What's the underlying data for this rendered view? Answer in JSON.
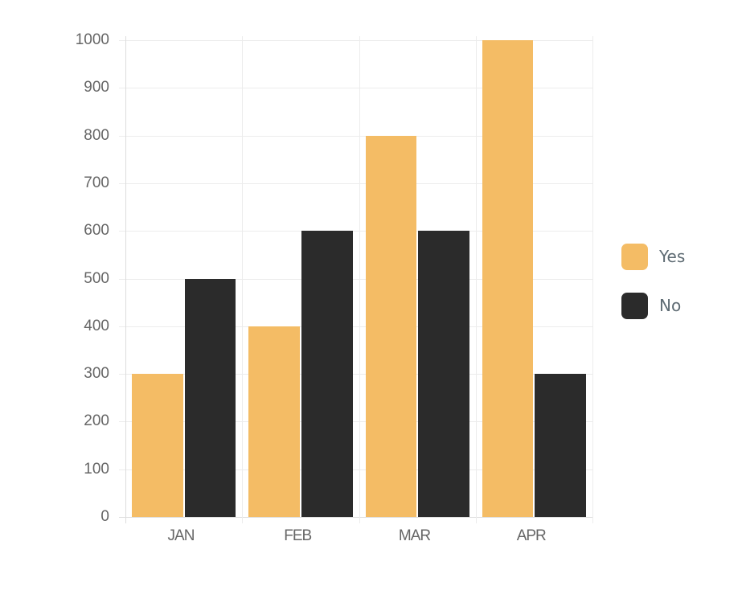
{
  "chart_data": {
    "type": "bar",
    "title": "",
    "xlabel": "",
    "ylabel": "",
    "categories": [
      "JAN",
      "FEB",
      "MAR",
      "APR"
    ],
    "series": [
      {
        "name": "Yes",
        "color": "#f4bc65",
        "values": [
          300,
          400,
          800,
          1000
        ]
      },
      {
        "name": "No",
        "color": "#2b2b2b",
        "values": [
          500,
          600,
          600,
          300
        ]
      }
    ],
    "ylim": [
      0,
      1000
    ],
    "yticks": [
      0,
      100,
      200,
      300,
      400,
      500,
      600,
      700,
      800,
      900,
      1000
    ],
    "grid": true,
    "legend_position": "right"
  },
  "legend": {
    "items": [
      {
        "label": "Yes",
        "color": "#f4bc65"
      },
      {
        "label": "No",
        "color": "#2b2b2b"
      }
    ]
  }
}
